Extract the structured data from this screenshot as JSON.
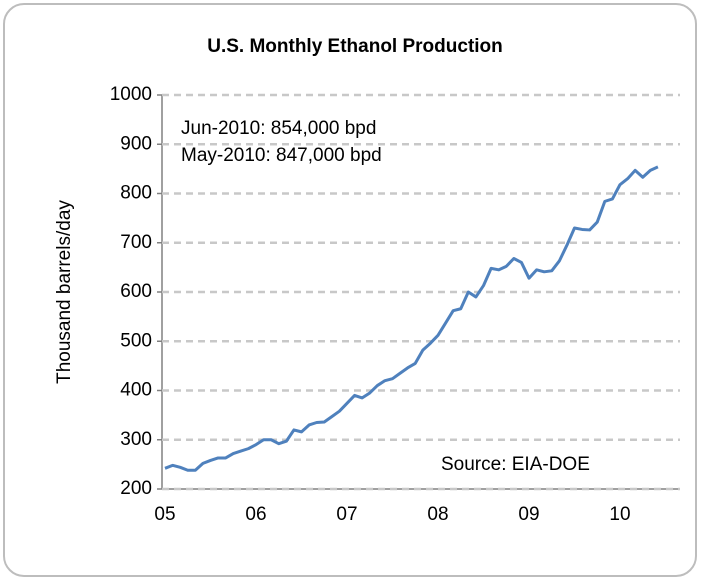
{
  "chart_data": {
    "type": "line",
    "title": "U.S. Monthly Ethanol Production",
    "y_label": "Thousand barrels/day",
    "annotations": [
      "Jun-2010:  854,000 bpd",
      "May-2010:  847,000 bpd",
      "Source: EIA-DOE"
    ],
    "categories": [
      "05",
      null,
      null,
      null,
      null,
      null,
      null,
      null,
      null,
      null,
      null,
      null,
      "06",
      null,
      null,
      null,
      null,
      null,
      null,
      null,
      null,
      null,
      null,
      null,
      "07",
      null,
      null,
      null,
      null,
      null,
      null,
      null,
      null,
      null,
      null,
      null,
      "08",
      null,
      null,
      null,
      null,
      null,
      null,
      null,
      null,
      null,
      null,
      null,
      "09",
      null,
      null,
      null,
      null,
      null,
      null,
      null,
      null,
      null,
      null,
      null,
      "10",
      null,
      null,
      null,
      null,
      null
    ],
    "series": [
      {
        "name": "Ethanol production",
        "color": "#4f81bd",
        "values": [
          242,
          248,
          244,
          238,
          238,
          252,
          258,
          263,
          263,
          272,
          277,
          282,
          290,
          300,
          300,
          292,
          297,
          320,
          316,
          330,
          335,
          336,
          347,
          358,
          374,
          390,
          385,
          395,
          410,
          420,
          424,
          435,
          446,
          455,
          482,
          496,
          512,
          537,
          562,
          566,
          600,
          590,
          613,
          648,
          645,
          652,
          668,
          660,
          628,
          645,
          641,
          643,
          663,
          695,
          730,
          727,
          726,
          742,
          784,
          789,
          818,
          830,
          847,
          833,
          847,
          854
        ]
      }
    ],
    "ylim": [
      200,
      1000
    ],
    "yticks": [
      200,
      300,
      400,
      500,
      600,
      700,
      800,
      900,
      1000
    ],
    "grid": true
  }
}
